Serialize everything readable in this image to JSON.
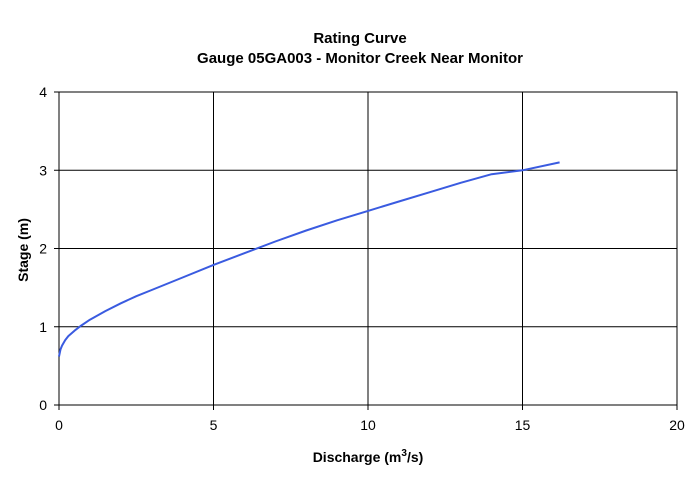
{
  "chart_data": {
    "type": "line",
    "title": "Rating Curve",
    "subtitle": "Gauge 05GA003 - Monitor Creek Near Monitor",
    "xlabel": "Discharge (m",
    "xlabel_sup": "3",
    "xlabel_suffix": "/s)",
    "ylabel": "Stage (m)",
    "xlim": [
      0,
      20
    ],
    "ylim": [
      0,
      4
    ],
    "x_ticks": [
      "0",
      "5",
      "10",
      "15",
      "20"
    ],
    "y_ticks": [
      "0",
      "1",
      "2",
      "3",
      "4"
    ],
    "grid": true,
    "series": [
      {
        "color": "#3a5be0",
        "x": [
          0.0,
          0.05,
          0.1,
          0.2,
          0.3,
          0.5,
          0.7,
          1.0,
          1.5,
          2.0,
          2.5,
          3.0,
          4.0,
          5.0,
          6.0,
          7.0,
          8.0,
          9.0,
          10.0,
          11.0,
          12.0,
          13.0,
          14.0,
          15.0,
          16.2
        ],
        "y": [
          0.62,
          0.71,
          0.76,
          0.83,
          0.88,
          0.95,
          1.01,
          1.09,
          1.2,
          1.3,
          1.39,
          1.47,
          1.63,
          1.79,
          1.94,
          2.09,
          2.23,
          2.36,
          2.48,
          2.6,
          2.72,
          2.84,
          2.95,
          3.0,
          3.1
        ]
      }
    ]
  }
}
